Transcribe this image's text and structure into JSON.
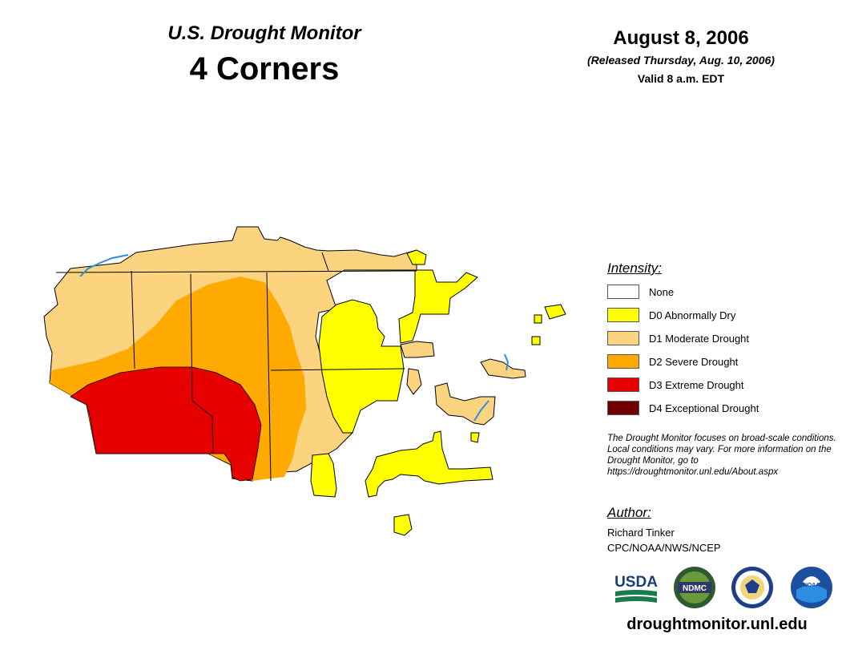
{
  "header": {
    "title": "U.S. Drought Monitor",
    "region": "4 Corners",
    "date": "August 8, 2006",
    "released": "(Released Thursday, Aug. 10, 2006)",
    "valid": "Valid 8 a.m. EDT"
  },
  "legend": {
    "heading": "Intensity:",
    "items": [
      {
        "label": "None",
        "color": "#ffffff"
      },
      {
        "label": "D0 Abnormally Dry",
        "color": "#ffff00"
      },
      {
        "label": "D1 Moderate Drought",
        "color": "#fcd37f"
      },
      {
        "label": "D2 Severe Drought",
        "color": "#ffaa00"
      },
      {
        "label": "D3 Extreme Drought",
        "color": "#e60000"
      },
      {
        "label": "D4 Exceptional Drought",
        "color": "#730000"
      }
    ],
    "note": "The Drought Monitor focuses on broad-scale conditions. Local conditions may vary. For more information on the Drought Monitor, go to https://droughtmonitor.unl.edu/About.aspx"
  },
  "author": {
    "heading": "Author:",
    "name": "Richard Tinker",
    "org": "CPC/NOAA/NWS/NCEP"
  },
  "logos": {
    "usda": "USDA",
    "ndmc": "NDMC",
    "noaa": "NOAA"
  },
  "footer": {
    "url": "droughtmonitor.unl.edu"
  },
  "colors": {
    "water": "#2f8fd8",
    "boundary": "#000000"
  }
}
